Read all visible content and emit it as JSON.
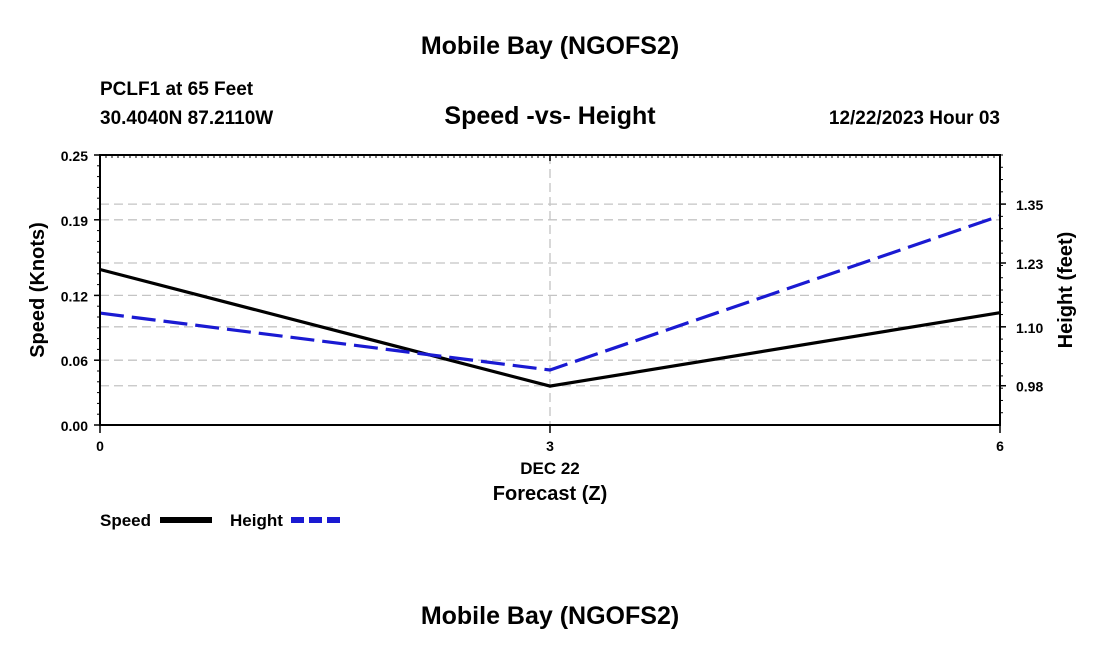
{
  "header": {
    "title": "Mobile Bay (NGOFS2)",
    "station": "PCLF1 at 65 Feet",
    "coords": "30.4040N  87.2110W",
    "subtitle": "Speed -vs- Height",
    "timestamp": "12/22/2023 Hour 03"
  },
  "footer": {
    "title": "Mobile Bay (NGOFS2)"
  },
  "chart_data": {
    "type": "line",
    "title": "Speed -vs- Height",
    "x": [
      0,
      3,
      6
    ],
    "x_ticks": [
      "0",
      "3",
      "6"
    ],
    "x_date_label": "DEC 22",
    "xlabel": "Forecast (Z)",
    "xlim": [
      0,
      6
    ],
    "ylabel_left": "Speed (Knots)",
    "ylim_left": [
      0,
      0.25
    ],
    "yticks_left": [
      "0.00",
      "0.06",
      "0.12",
      "0.19",
      "0.25"
    ],
    "ylabel_right": "Height (feet)",
    "ylim_right": [
      0.9,
      1.45
    ],
    "yticks_right": [
      "0.98",
      "1.10",
      "1.23",
      "1.35"
    ],
    "grid": true,
    "series": [
      {
        "name": "Speed",
        "axis": "left",
        "color": "#000000",
        "style": "solid",
        "values": [
          0.144,
          0.036,
          0.104
        ]
      },
      {
        "name": "Height",
        "axis": "right",
        "color": "#1a1ad2",
        "style": "dashed",
        "values": [
          1.128,
          1.012,
          1.326
        ]
      }
    ],
    "legend": [
      "Speed",
      "Height"
    ]
  }
}
